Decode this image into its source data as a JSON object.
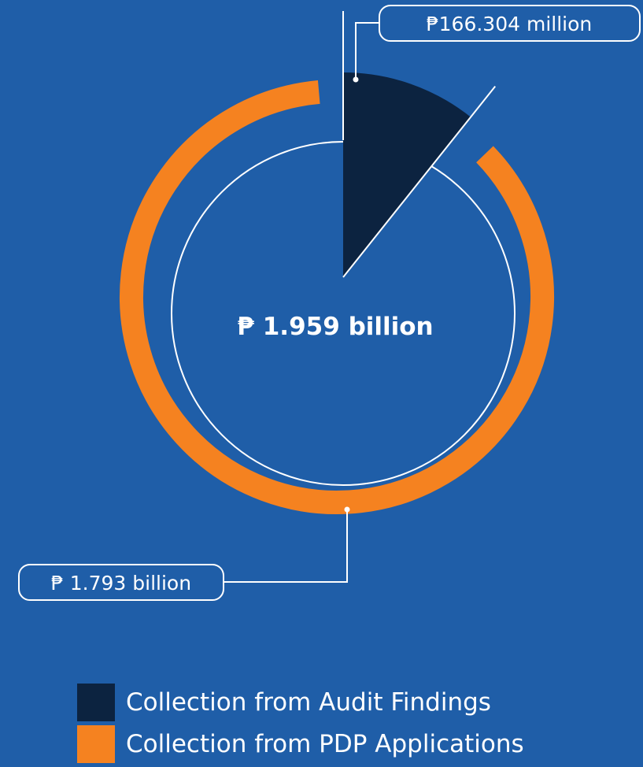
{
  "chart_data": {
    "type": "pie",
    "total_label": "₱ 1.959 billion",
    "slices": [
      {
        "name": "Collection from Audit Findings",
        "value": 0.166304,
        "value_label": "₱166.304 million",
        "color": "#0c2340"
      },
      {
        "name": "Collection from PDP Applications",
        "value": 1.793,
        "value_label": "₱ 1.793 billion",
        "color": "#f58220"
      }
    ]
  },
  "colors": {
    "background": "#1f5ea8",
    "line": "#ffffff"
  }
}
